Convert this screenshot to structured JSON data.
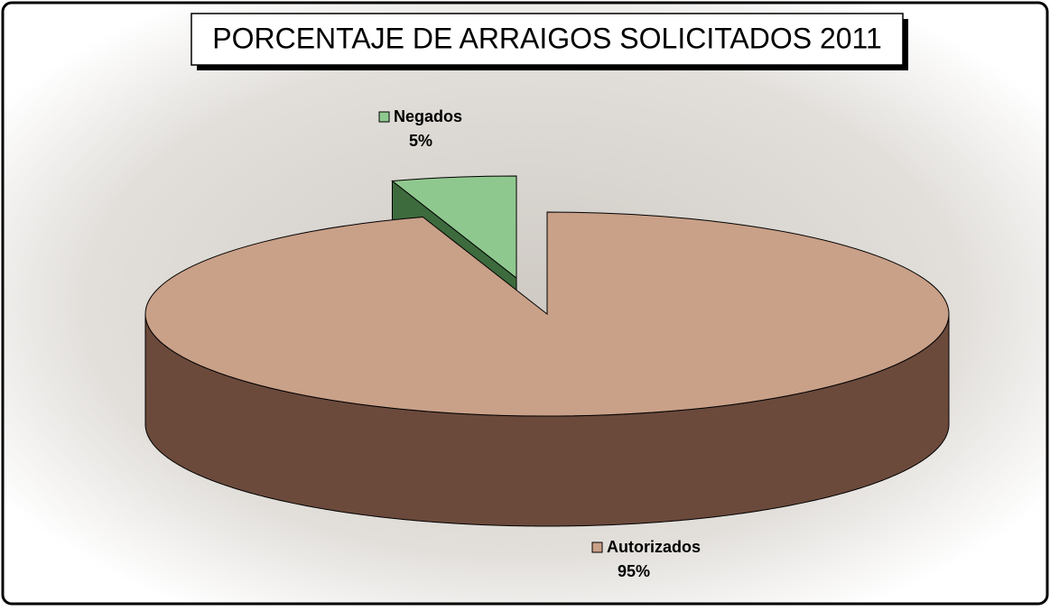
{
  "chart_data": {
    "type": "pie",
    "title": "PORCENTAJE DE ARRAIGOS SOLICITADOS 2011",
    "categories": [
      "Negados",
      "Autorizados"
    ],
    "values": [
      5,
      95
    ],
    "value_labels": [
      "5%",
      "95%"
    ],
    "colors": [
      "#8fc88f",
      "#c9a088"
    ],
    "side_colors": [
      "#3d6b3d",
      "#6b4a3c"
    ]
  }
}
